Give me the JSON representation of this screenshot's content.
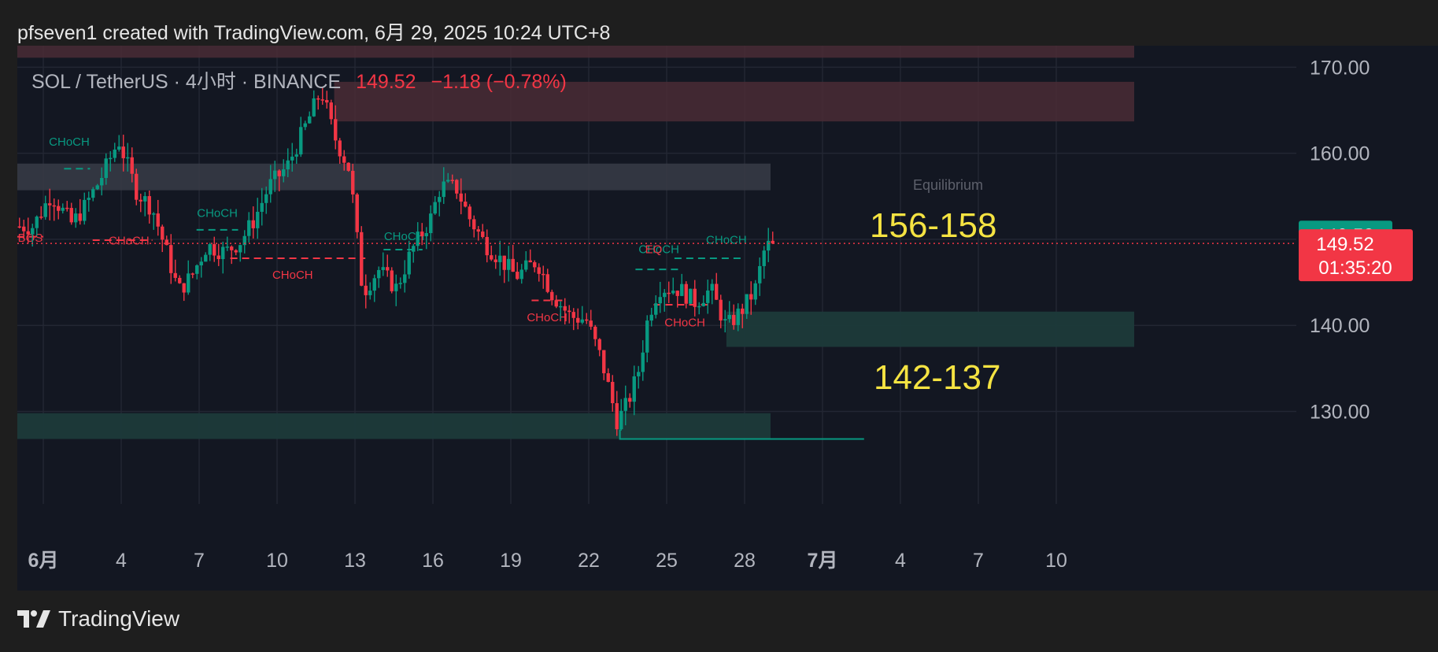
{
  "header": {
    "credit": "pfseven1 created with TradingView.com, 6月 29, 2025 10:24 UTC+8"
  },
  "legend": {
    "symbol": "SOL / TetherUS · 4小时 · BINANCE",
    "price": "149.52",
    "change": "−1.18 (−0.78%)"
  },
  "price_labels": {
    "ask": "149.53",
    "last": "149.52",
    "countdown": "01:35:20"
  },
  "annotations": {
    "upper_zone": "156-158",
    "lower_zone": "142-137",
    "equilibrium": "Equilibrium"
  },
  "footer": {
    "brand": "TradingView"
  },
  "colors": {
    "background": "#131722",
    "up": "#089981",
    "down": "#f23645",
    "highlight_text": "#f5e342",
    "supply_zone": "#4a2c35",
    "equilibrium_zone": "#363a45",
    "demand_zone": "#1c3a3a"
  },
  "chart_data": {
    "type": "candlestick",
    "title": "",
    "ylim": [
      125,
      172
    ],
    "y_ticks": [
      "170.00",
      "160.00",
      "150.00",
      "140.00",
      "130.00"
    ],
    "x_ticks": [
      "6月",
      "4",
      "7",
      "10",
      "13",
      "16",
      "19",
      "22",
      "25",
      "28",
      "7月",
      "4",
      "7",
      "10"
    ],
    "x_tick_days": [
      1,
      4,
      7,
      10,
      13,
      16,
      19,
      22,
      25,
      28,
      31,
      34,
      37,
      40
    ],
    "grid": true,
    "last_price": 149.52,
    "close_path": [
      [
        0.6,
        151.5
      ],
      [
        1.3,
        155.2
      ],
      [
        2.1,
        151.8
      ],
      [
        2.6,
        153.8
      ],
      [
        3.2,
        157.0
      ],
      [
        3.9,
        161.5
      ],
      [
        4.6,
        155.5
      ],
      [
        5.2,
        153.6
      ],
      [
        5.8,
        148.0
      ],
      [
        6.2,
        144.0
      ],
      [
        6.7,
        145.7
      ],
      [
        7.3,
        149.3
      ],
      [
        8.0,
        148.5
      ],
      [
        8.6,
        149.8
      ],
      [
        9.1,
        152.2
      ],
      [
        9.7,
        156.2
      ],
      [
        10.4,
        158.5
      ],
      [
        11.1,
        163.2
      ],
      [
        11.7,
        167.3
      ],
      [
        12.2,
        162.0
      ],
      [
        12.8,
        158.0
      ],
      [
        13.3,
        143.8
      ],
      [
        13.9,
        146.5
      ],
      [
        14.6,
        144.3
      ],
      [
        15.2,
        148.8
      ],
      [
        15.9,
        152.3
      ],
      [
        16.3,
        156.2
      ],
      [
        16.9,
        156.0
      ],
      [
        17.4,
        152.5
      ],
      [
        18.0,
        149.5
      ],
      [
        18.5,
        148.0
      ],
      [
        19.2,
        145.7
      ],
      [
        20.0,
        147.5
      ],
      [
        20.6,
        143.6
      ],
      [
        21.3,
        141.0
      ],
      [
        21.9,
        140.7
      ],
      [
        22.5,
        135.9
      ],
      [
        23.1,
        128.8
      ],
      [
        23.5,
        131.0
      ],
      [
        23.9,
        134.5
      ],
      [
        24.3,
        141.2
      ],
      [
        24.7,
        144.4
      ],
      [
        25.5,
        144.2
      ],
      [
        26.1,
        142.7
      ],
      [
        26.7,
        144.2
      ],
      [
        27.3,
        139.8
      ],
      [
        27.9,
        141.8
      ],
      [
        28.4,
        144.1
      ],
      [
        28.8,
        149.2
      ],
      [
        29.3,
        149.52
      ]
    ],
    "zones": [
      {
        "kind": "supply",
        "y": [
          171.1,
          172.9
        ],
        "from_day": 0.0,
        "to_day": 43.0
      },
      {
        "kind": "supply",
        "y": [
          163.7,
          168.3
        ],
        "from_day": 12.2,
        "to_day": 43.0
      },
      {
        "kind": "equilibrium",
        "y": [
          155.7,
          158.8
        ],
        "from_day": 0.0,
        "to_day": 29.0
      },
      {
        "kind": "demand",
        "y": [
          137.5,
          141.6
        ],
        "from_day": 27.3,
        "to_day": 43.0
      },
      {
        "kind": "demand",
        "y": [
          126.8,
          129.8
        ],
        "from_day": 0.0,
        "to_day": 29.0
      }
    ],
    "structure_labels": [
      {
        "text": "CHoCH",
        "day": 2.0,
        "price": 160.9,
        "dir": "up"
      },
      {
        "text": "CHoCH",
        "day": 7.7,
        "price": 152.6,
        "dir": "up"
      },
      {
        "text": "CHoCH",
        "day": 14.9,
        "price": 149.9,
        "dir": "up"
      },
      {
        "text": "CHoCH",
        "day": 27.3,
        "price": 149.5,
        "dir": "up"
      },
      {
        "text": "CHoCH",
        "day": 24.7,
        "price": 148.4,
        "dir": "up"
      },
      {
        "text": "BOS",
        "day": 0.5,
        "price": 149.7,
        "dir": "down"
      },
      {
        "text": "CHoCH",
        "day": 4.3,
        "price": 149.4,
        "dir": "down"
      },
      {
        "text": "CHoCH",
        "day": 10.6,
        "price": 145.4,
        "dir": "down"
      },
      {
        "text": "EQ",
        "day": 24.5,
        "price": 148.4,
        "dir": "down"
      },
      {
        "text": "CHoCH",
        "day": 20.4,
        "price": 140.5,
        "dir": "down"
      },
      {
        "text": "CHoCH",
        "day": 25.7,
        "price": 139.9,
        "dir": "down"
      }
    ],
    "structure_lines": [
      {
        "from": 1.8,
        "to": 2.8,
        "price": 158.2,
        "dir": "up"
      },
      {
        "from": 6.9,
        "to": 8.5,
        "price": 151.1,
        "dir": "up"
      },
      {
        "from": 14.1,
        "to": 15.6,
        "price": 148.8,
        "dir": "up"
      },
      {
        "from": 25.3,
        "to": 28.0,
        "price": 147.8,
        "dir": "up"
      },
      {
        "from": 23.8,
        "to": 25.6,
        "price": 146.5,
        "dir": "up"
      },
      {
        "from": 0.0,
        "to": 1.0,
        "price": 150.3,
        "dir": "down"
      },
      {
        "from": 2.9,
        "to": 5.2,
        "price": 149.9,
        "dir": "down"
      },
      {
        "from": 8.2,
        "to": 13.4,
        "price": 147.8,
        "dir": "down"
      },
      {
        "from": 19.8,
        "to": 21.0,
        "price": 142.9,
        "dir": "down"
      },
      {
        "from": 24.5,
        "to": 26.6,
        "price": 142.4,
        "dir": "down"
      }
    ],
    "low_line": {
      "from": 23.2,
      "to": 32.6,
      "price": 126.8
    }
  }
}
